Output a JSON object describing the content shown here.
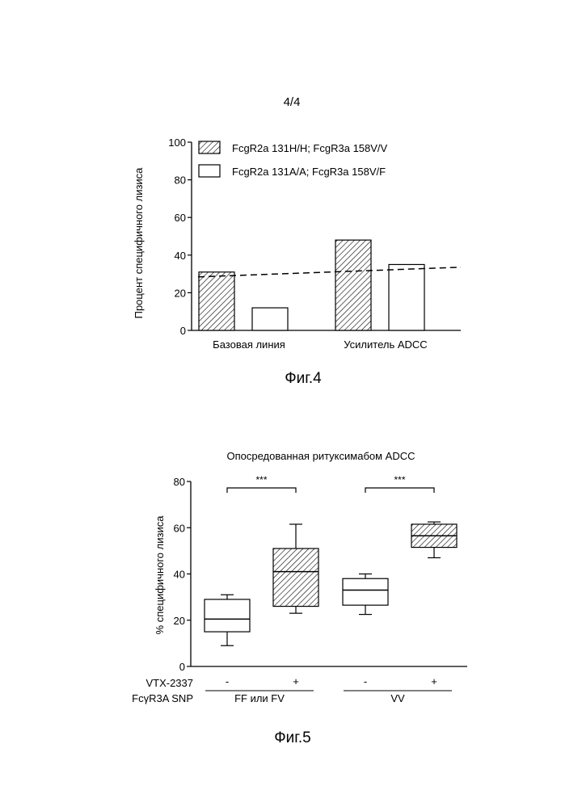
{
  "page_number": "4/4",
  "chart_data": [
    {
      "type": "bar",
      "caption": "Фиг.4",
      "title": "",
      "ylabel": "Процент специфичного лизиса",
      "xlabel": "",
      "ylim": [
        0,
        100
      ],
      "yticks": [
        0,
        20,
        40,
        60,
        80,
        100
      ],
      "categories": [
        "Базовая линия",
        "Усилитель ADCC"
      ],
      "series": [
        {
          "name": "FcgR2a  131H/H; FcgR3a 158V/V",
          "fill": "hatched",
          "values": [
            31,
            48
          ]
        },
        {
          "name": "FcgR2a  131A/A; FcgR3a 158V/F",
          "fill": "white",
          "values": [
            12,
            35
          ]
        }
      ],
      "reference_line": {
        "y": 31,
        "style": "dashed"
      },
      "legend_position": "top-left",
      "grid": false
    },
    {
      "type": "box",
      "caption": "Фиг.5",
      "title": "Опосредованная ритуксимабом ADCC",
      "ylabel": "% специфичного лизиса",
      "xlabel": "",
      "ylim": [
        0,
        80
      ],
      "yticks": [
        0,
        20,
        40,
        60,
        80
      ],
      "boxes": [
        {
          "vtx": "-",
          "group": "FF или FV",
          "fill": "white",
          "whisker_low": 9,
          "q1": 15,
          "median": 20.5,
          "q3": 29,
          "whisker_high": 31
        },
        {
          "vtx": "+",
          "group": "FF или FV",
          "fill": "hatched",
          "whisker_low": 23,
          "q1": 26,
          "median": 41,
          "q3": 51,
          "whisker_high": 61.5
        },
        {
          "vtx": "-",
          "group": "VV",
          "fill": "white",
          "whisker_low": 22.5,
          "q1": 26.5,
          "median": 33,
          "q3": 38,
          "whisker_high": 40
        },
        {
          "vtx": "+",
          "group": "VV",
          "fill": "hatched",
          "whisker_low": 47,
          "q1": 51.5,
          "median": 56.5,
          "q3": 61.5,
          "whisker_high": 62.5
        }
      ],
      "significance": [
        {
          "between": [
            0,
            1
          ],
          "label": "***"
        },
        {
          "between": [
            2,
            3
          ],
          "label": "***"
        }
      ],
      "row_labels": {
        "vtx": "VTX-2337",
        "snp": "FcγR3A SNP"
      },
      "groups": [
        "FF или FV",
        "VV"
      ],
      "grid": false
    }
  ]
}
